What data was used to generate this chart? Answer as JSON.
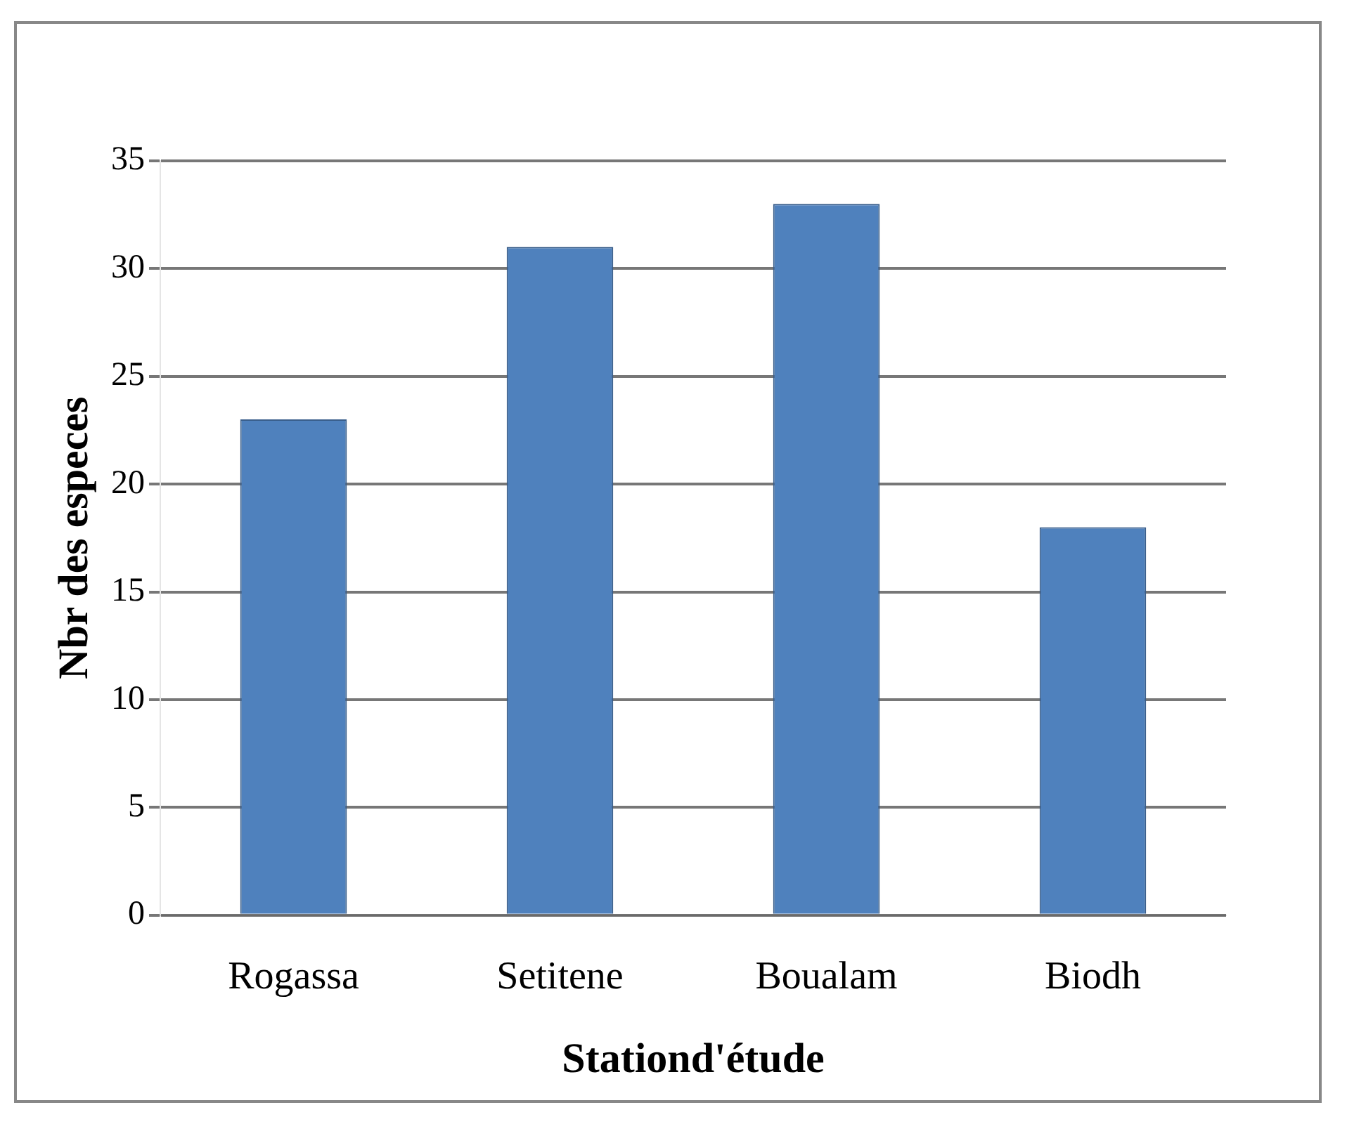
{
  "chart_data": {
    "type": "bar",
    "xlabel": "Stationd'étude",
    "ylabel": "Nbr des especes",
    "categories": [
      "Rogassa",
      "Setitene",
      "Boualam",
      "Biodh"
    ],
    "values": [
      23,
      31,
      33,
      18
    ],
    "color": "#4f81bd",
    "ylim": [
      0,
      35
    ],
    "yticks": [
      0,
      5,
      10,
      15,
      20,
      25,
      30,
      35
    ],
    "grid": "y",
    "legend": false
  }
}
